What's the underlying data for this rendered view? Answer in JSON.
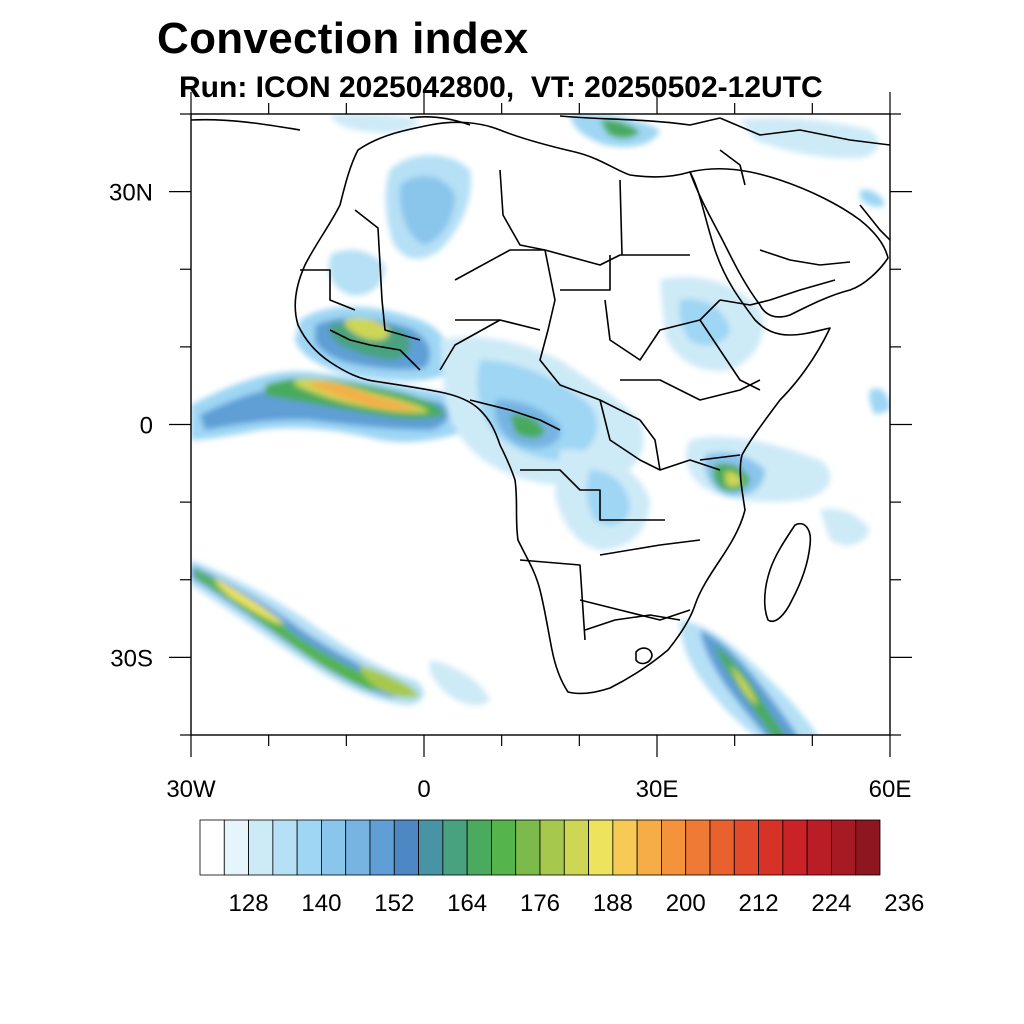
{
  "title": "Convection index",
  "subtitle": "Run: ICON 2025042800,  VT: 20250502-12UTC",
  "map": {
    "lon_range": [
      -30,
      60
    ],
    "lat_range": [
      -40,
      40
    ],
    "x_ticks": [
      {
        "value": -30,
        "label": "30W"
      },
      {
        "value": 0,
        "label": "0"
      },
      {
        "value": 30,
        "label": "30E"
      },
      {
        "value": 60,
        "label": "60E"
      }
    ],
    "y_ticks": [
      {
        "value": 30,
        "label": "30N"
      },
      {
        "value": 0,
        "label": "0"
      },
      {
        "value": -30,
        "label": "30S"
      }
    ],
    "minor_tick_step_deg": 10
  },
  "colorbar": {
    "colors": [
      "#ffffff",
      "#e6f4fb",
      "#cdeaf7",
      "#b5e0f6",
      "#9ed6f4",
      "#8ac5ec",
      "#77b4e2",
      "#5f9fd6",
      "#4d88c5",
      "#4894a4",
      "#48a280",
      "#4aaa5d",
      "#55b44c",
      "#7cbb4b",
      "#a6c94d",
      "#cdd755",
      "#eee35d",
      "#f7ca55",
      "#f6ad48",
      "#f3943d",
      "#ee7a35",
      "#e8612e",
      "#e14a2b",
      "#d73228",
      "#c92227",
      "#b91d26",
      "#a61a24",
      "#8e1620"
    ],
    "labels": [
      "128",
      "140",
      "152",
      "164",
      "176",
      "188",
      "200",
      "212",
      "224",
      "236"
    ],
    "label_bin_index": [
      2,
      5,
      8,
      11,
      14,
      17,
      20,
      23,
      26,
      29
    ]
  }
}
